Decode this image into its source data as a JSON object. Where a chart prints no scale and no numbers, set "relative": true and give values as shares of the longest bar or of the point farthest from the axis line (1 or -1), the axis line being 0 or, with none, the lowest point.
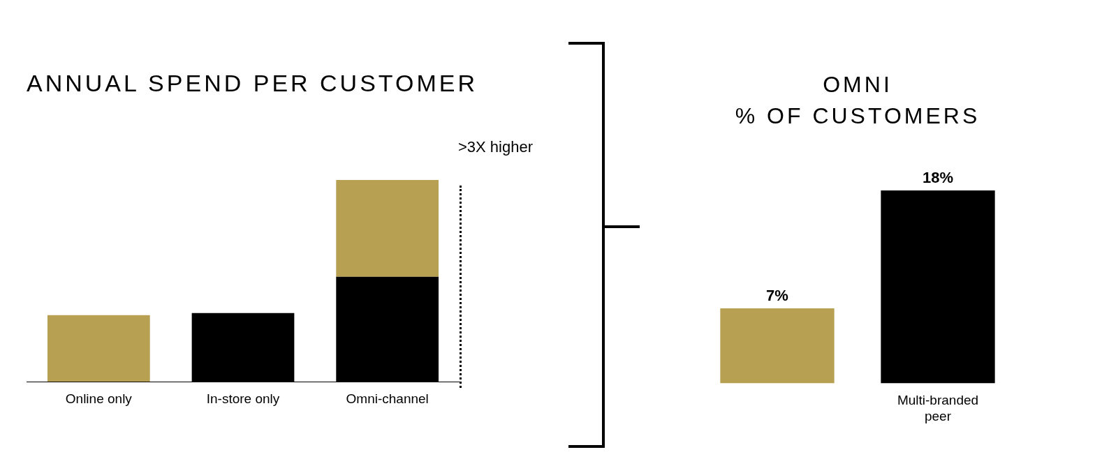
{
  "chart_data": [
    {
      "type": "bar",
      "title": "ANNUAL SPEND PER CUSTOMER",
      "categories": [
        "Online only",
        "In-store only",
        "Omni-channel"
      ],
      "relative": true,
      "stacked": true,
      "grid": false,
      "legend": false,
      "tick_labels": "x",
      "annotations": [
        ">3X higher"
      ],
      "series": [
        {
          "color": "#000000",
          "values": [
            null,
            0.34,
            0.52
          ]
        },
        {
          "color": "#b8a053",
          "values": [
            0.33,
            null,
            0.48
          ]
        }
      ]
    },
    {
      "type": "bar",
      "title": "OMNI",
      "subtitle": "% OF CUSTOMERS",
      "categories": [
        null,
        "Multi-branded peer"
      ],
      "values": [
        7,
        18
      ],
      "colors": [
        "#b8a053",
        "#000000"
      ],
      "value_labels": [
        "7%",
        "18%"
      ],
      "grid": false,
      "legend": false,
      "tick_labels": "x"
    }
  ]
}
